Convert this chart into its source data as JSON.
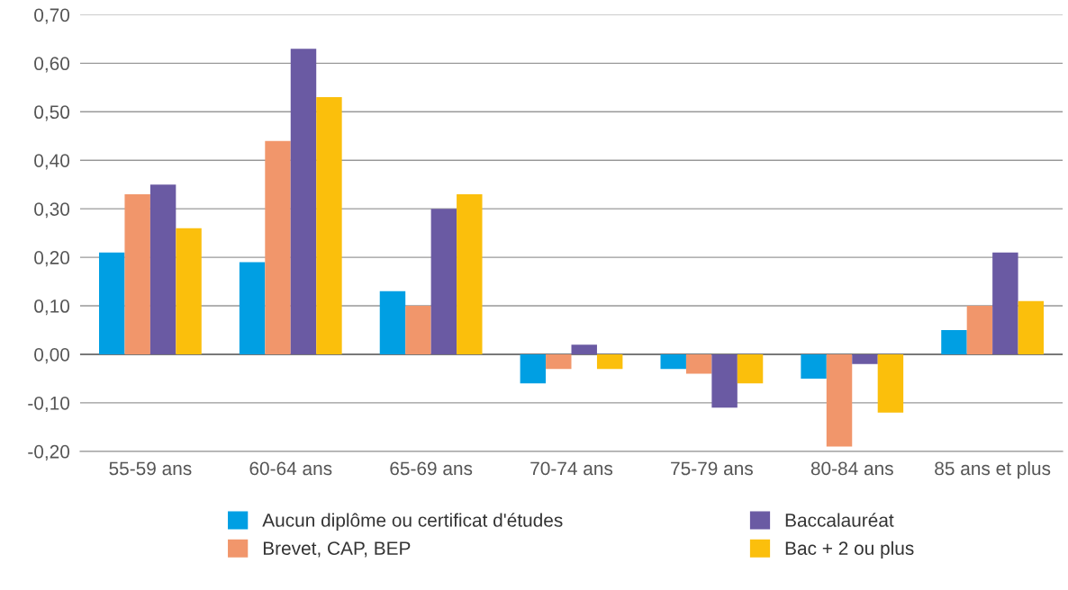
{
  "chart_data": {
    "type": "bar",
    "categories": [
      "55-59 ans",
      "60-64 ans",
      "65-69 ans",
      "70-74 ans",
      "75-79 ans",
      "80-84 ans",
      "85 ans et plus"
    ],
    "series": [
      {
        "name": "Aucun diplôme ou certificat d'études",
        "color": "#009fe3",
        "values": [
          0.21,
          0.19,
          0.13,
          -0.06,
          -0.03,
          -0.05,
          0.05
        ]
      },
      {
        "name": "Brevet, CAP, BEP",
        "color": "#f1966b",
        "values": [
          0.33,
          0.44,
          0.1,
          -0.03,
          -0.04,
          -0.19,
          0.1
        ]
      },
      {
        "name": "Baccalauréat",
        "color": "#6a5aa3",
        "values": [
          0.35,
          0.63,
          0.3,
          0.02,
          -0.11,
          -0.02,
          0.21
        ]
      },
      {
        "name": "Bac + 2 ou plus",
        "color": "#fbbf0c",
        "values": [
          0.26,
          0.53,
          0.33,
          -0.03,
          -0.06,
          -0.12,
          0.11
        ]
      }
    ],
    "ylim": [
      -0.2,
      0.7
    ],
    "yticks": [
      {
        "value": -0.2,
        "label": "-0,20"
      },
      {
        "value": -0.1,
        "label": "-0,10"
      },
      {
        "value": 0,
        "label": "0,00"
      },
      {
        "value": 0.1,
        "label": "0,10"
      },
      {
        "value": 0.2,
        "label": "0,20"
      },
      {
        "value": 0.3,
        "label": "0,30"
      },
      {
        "value": 0.4,
        "label": "0,40"
      },
      {
        "value": 0.5,
        "label": "0,50"
      },
      {
        "value": 0.6,
        "label": "0,60"
      },
      {
        "value": 0.7,
        "label": "0,70"
      }
    ],
    "grid": "y",
    "legend": "bottom"
  }
}
